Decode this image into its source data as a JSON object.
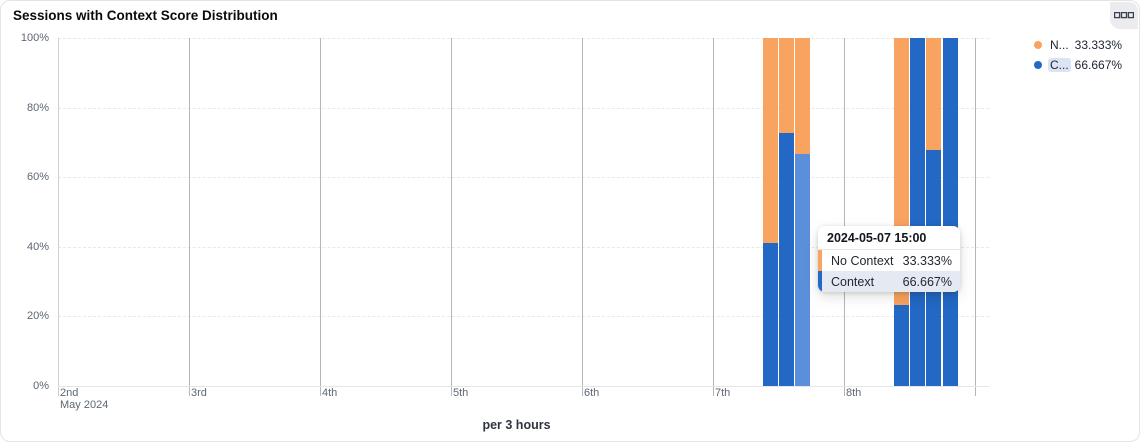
{
  "header": {
    "title": "Sessions with Context Score Distribution",
    "menu_icon": "table-view-icon"
  },
  "legend": {
    "items": [
      {
        "name": "N...",
        "value": "33.333%",
        "color": "#f8a360",
        "highlighted": false
      },
      {
        "name": "C...",
        "value": "66.667%",
        "color": "#2268c4",
        "highlighted": true
      }
    ]
  },
  "tooltip": {
    "title": "2024-05-07 15:00",
    "rows": [
      {
        "label": "No Context",
        "value": "33.333%",
        "color": "#f8a360",
        "highlighted": false
      },
      {
        "label": "Context",
        "value": "66.667%",
        "color": "#2268c4",
        "highlighted": true
      }
    ]
  },
  "chart_data": {
    "type": "bar",
    "subtype": "stacked-percent-time",
    "title": "Sessions with Context Score Distribution",
    "x_axis_title": "per 3 hours",
    "x_sub_label": "May 2024",
    "x_ticks": [
      "2nd",
      "3rd",
      "4th",
      "5th",
      "6th",
      "7th",
      "8th"
    ],
    "y_ticks": [
      "100%",
      "80%",
      "60%",
      "40%",
      "20%",
      "0%"
    ],
    "ylim": [
      0,
      100
    ],
    "grid": "vertical-solid-horizontal-dashed",
    "legend_position": "top-right",
    "x": [
      "2024-05-07 09:00",
      "2024-05-07 12:00",
      "2024-05-07 15:00",
      "2024-05-08 09:00",
      "2024-05-08 12:00",
      "2024-05-08 15:00",
      "2024-05-08 18:00"
    ],
    "series": [
      {
        "name": "Context",
        "color": "#2268c4",
        "values": [
          41,
          72.6,
          66.667,
          23.3,
          100,
          67.7,
          100
        ]
      },
      {
        "name": "No Context",
        "color": "#f8a360",
        "values": [
          59,
          27.4,
          33.333,
          76.7,
          0,
          32.3,
          0
        ]
      }
    ],
    "highlighted_x": "2024-05-07 15:00",
    "highlight_color": "#5c8fd9"
  }
}
